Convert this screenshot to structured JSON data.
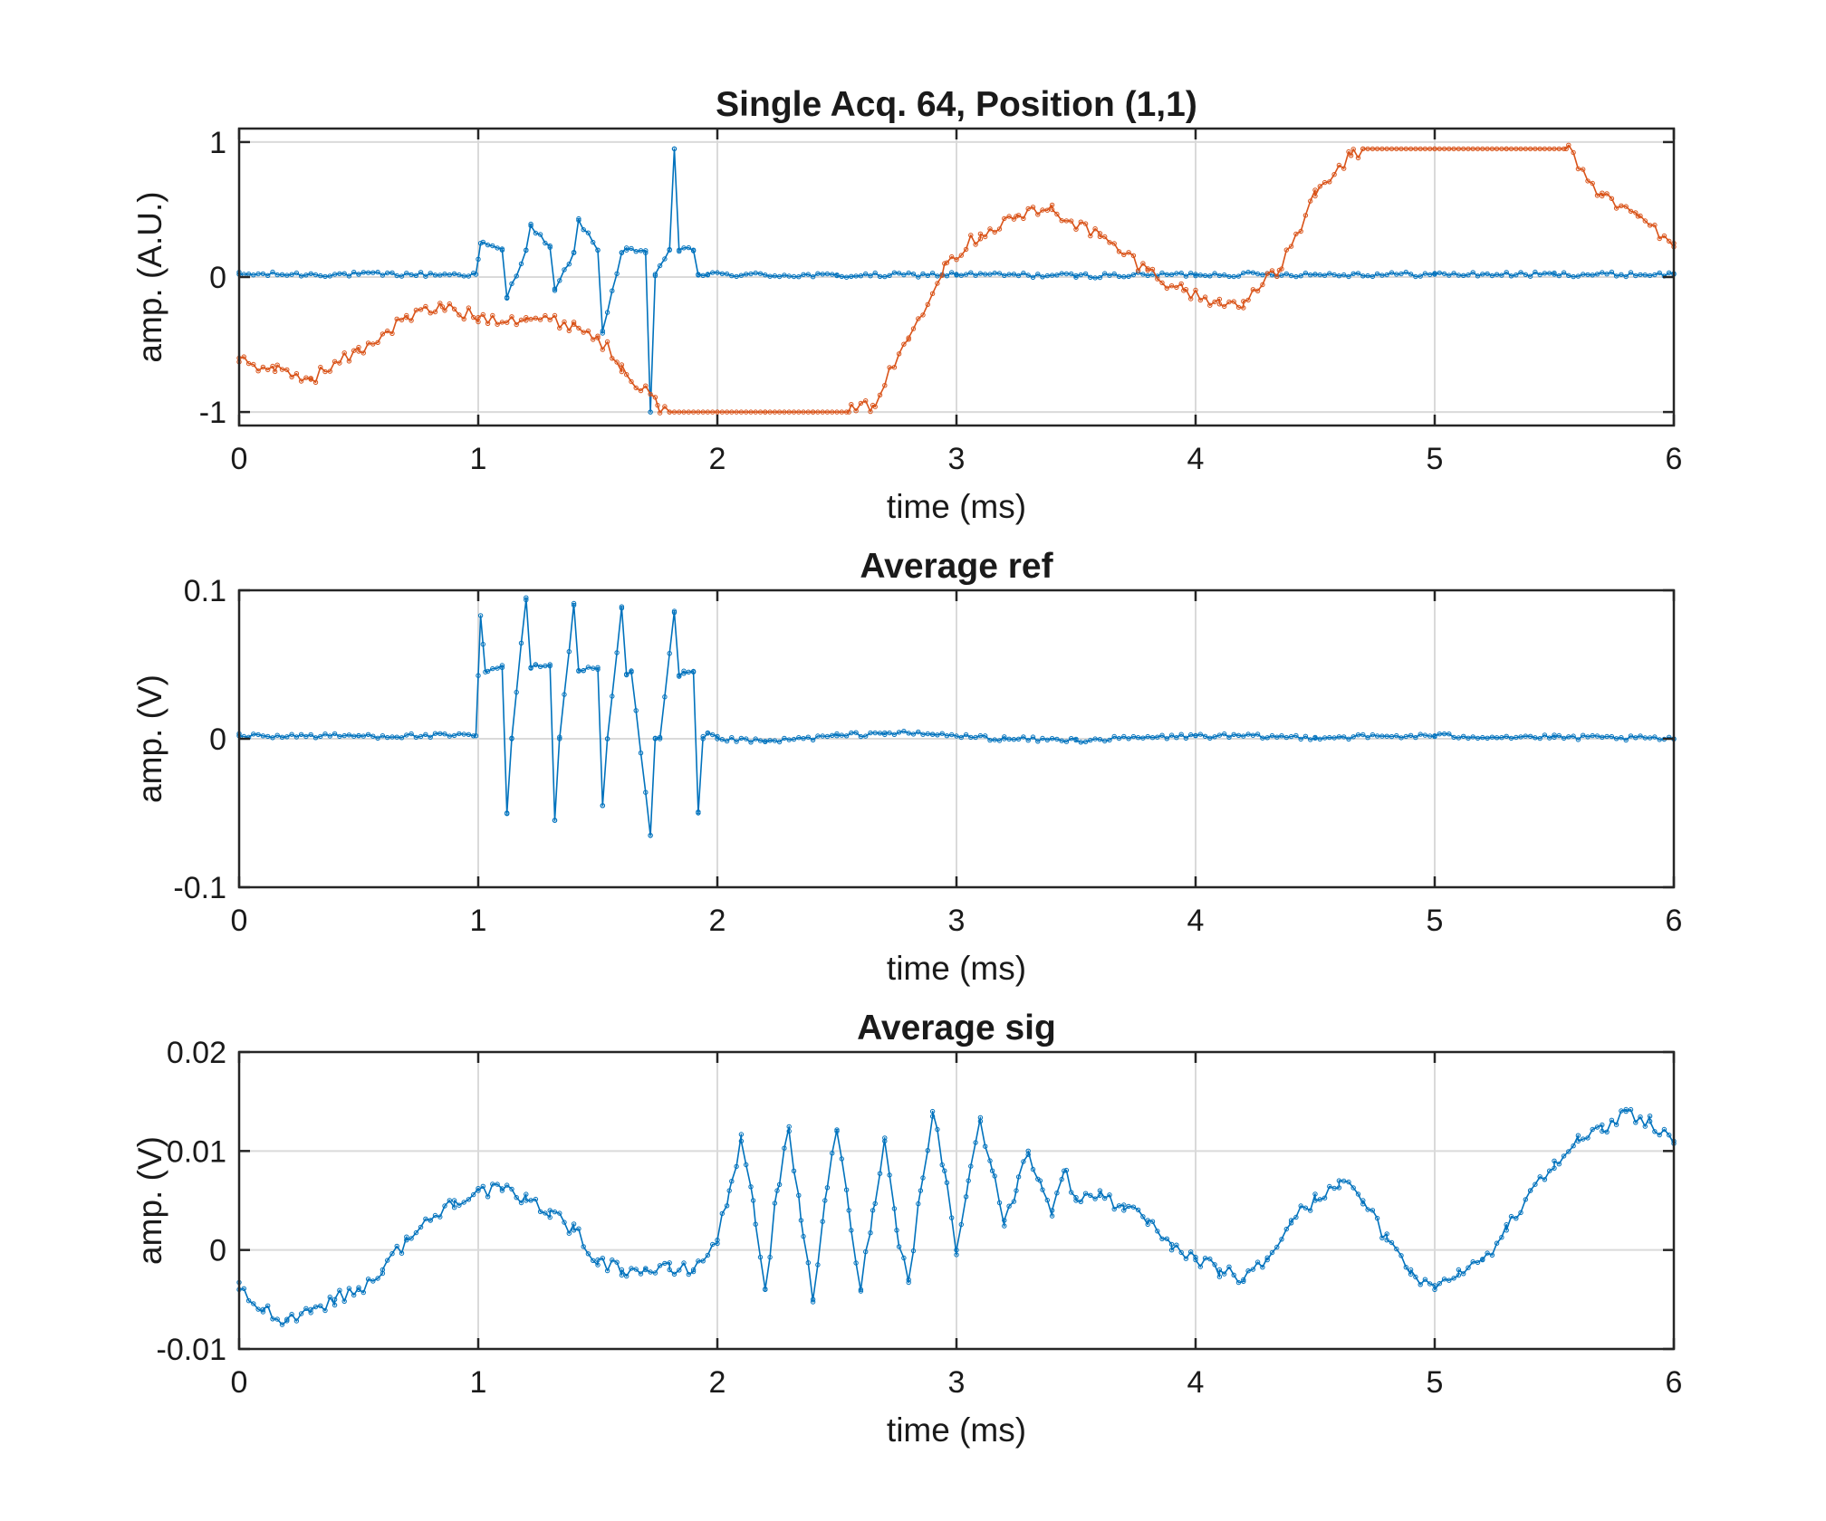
{
  "colors": {
    "blue": "#0072BD",
    "orange": "#D95319",
    "grid": "#DADADA",
    "axis": "#262626",
    "background": "#FFFFFF"
  },
  "chart_data": [
    {
      "type": "line",
      "title": "Single Acq. 64, Position (1,1)",
      "xlabel": "time (ms)",
      "ylabel": "amp. (A.U.)",
      "xlim": [
        0,
        6
      ],
      "ylim": [
        -1.1,
        1.1
      ],
      "xticks": [
        0,
        1,
        2,
        3,
        4,
        5,
        6
      ],
      "xtick_labels": [
        "0",
        "1",
        "2",
        "3",
        "4",
        "5",
        "6"
      ],
      "yticks": [
        -1,
        0,
        1
      ],
      "ytick_labels": [
        "-1",
        "0",
        "1"
      ],
      "grid": true,
      "markers": "small circles",
      "series": [
        {
          "color": "#0072BD",
          "x": [
            0,
            0.5,
            0.99,
            1.01,
            1.1,
            1.12,
            1.2,
            1.22,
            1.3,
            1.32,
            1.4,
            1.42,
            1.5,
            1.52,
            1.6,
            1.62,
            1.7,
            1.72,
            1.74,
            1.8,
            1.82,
            1.84,
            1.9,
            1.92,
            1.96,
            2.5,
            3,
            3.5,
            4,
            4.5,
            5,
            5.5,
            6
          ],
          "y": [
            0.02,
            0.02,
            0.02,
            0.25,
            0.2,
            -0.15,
            0.2,
            0.38,
            0.22,
            -0.1,
            0.18,
            0.42,
            0.2,
            -0.4,
            0.18,
            0.2,
            0.18,
            -1.0,
            0.02,
            0.2,
            0.95,
            0.2,
            0.2,
            0.02,
            0.02,
            0.01,
            0.02,
            0.01,
            0.02,
            0.02,
            0.02,
            0.02,
            0.02
          ]
        },
        {
          "color": "#D95319",
          "x": [
            0,
            0.15,
            0.3,
            0.5,
            0.7,
            0.85,
            1.0,
            1.2,
            1.4,
            1.5,
            1.6,
            1.75,
            1.8,
            2.0,
            2.2,
            2.4,
            2.55,
            2.65,
            2.8,
            2.95,
            3.1,
            3.25,
            3.4,
            3.6,
            3.8,
            3.95,
            4.1,
            4.2,
            4.35,
            4.5,
            4.65,
            4.7,
            5.0,
            5.3,
            5.55,
            5.7,
            5.85,
            6.0
          ],
          "y": [
            -0.6,
            -0.7,
            -0.75,
            -0.55,
            -0.3,
            -0.22,
            -0.3,
            -0.3,
            -0.35,
            -0.45,
            -0.65,
            -0.95,
            -1.0,
            -1.0,
            -1.0,
            -1.0,
            -1.0,
            -0.95,
            -0.45,
            0.1,
            0.32,
            0.45,
            0.5,
            0.3,
            0.05,
            -0.1,
            -0.2,
            -0.18,
            0.05,
            0.6,
            0.9,
            0.95,
            0.95,
            0.95,
            0.95,
            0.6,
            0.45,
            0.25
          ]
        }
      ]
    },
    {
      "type": "line",
      "title": "Average ref",
      "xlabel": "time (ms)",
      "ylabel": "amp. (V)",
      "xlim": [
        0,
        6
      ],
      "ylim": [
        -0.1,
        0.1
      ],
      "xticks": [
        0,
        1,
        2,
        3,
        4,
        5,
        6
      ],
      "xtick_labels": [
        "0",
        "1",
        "2",
        "3",
        "4",
        "5",
        "6"
      ],
      "yticks": [
        -0.1,
        0,
        0.1
      ],
      "ytick_labels": [
        "-0.1",
        "0",
        "0.1"
      ],
      "grid": true,
      "markers": "small circles",
      "series": [
        {
          "color": "#0072BD",
          "x": [
            0,
            0.5,
            0.99,
            1.01,
            1.03,
            1.1,
            1.12,
            1.14,
            1.2,
            1.22,
            1.24,
            1.3,
            1.32,
            1.34,
            1.4,
            1.42,
            1.44,
            1.5,
            1.52,
            1.54,
            1.6,
            1.62,
            1.64,
            1.72,
            1.74,
            1.76,
            1.82,
            1.84,
            1.86,
            1.9,
            1.92,
            1.94,
            1.96,
            2.0,
            2.2,
            2.5,
            2.7,
            2.9,
            3.2,
            3.5,
            4.0,
            4.5,
            5.0,
            5.5,
            6.0
          ],
          "y": [
            0.002,
            0.002,
            0.002,
            0.083,
            0.045,
            0.048,
            -0.05,
            0.0,
            0.095,
            0.048,
            0.05,
            0.05,
            -0.055,
            0.0,
            0.09,
            0.046,
            0.046,
            0.048,
            -0.045,
            0.0,
            0.088,
            0.043,
            0.045,
            -0.065,
            0.0,
            0.0,
            0.085,
            0.042,
            0.044,
            0.045,
            -0.05,
            0.0,
            0.004,
            0.0,
            -0.002,
            0.002,
            0.004,
            0.003,
            0.0,
            -0.001,
            0.002,
            0.001,
            0.002,
            0.001,
            0.0
          ]
        }
      ]
    },
    {
      "type": "line",
      "title": "Average sig",
      "xlabel": "time (ms)",
      "ylabel": "amp. (V)",
      "xlim": [
        0,
        6
      ],
      "ylim": [
        -0.01,
        0.02
      ],
      "xticks": [
        0,
        1,
        2,
        3,
        4,
        5,
        6
      ],
      "xtick_labels": [
        "0",
        "1",
        "2",
        "3",
        "4",
        "5",
        "6"
      ],
      "yticks": [
        -0.01,
        0,
        0.01,
        0.02
      ],
      "ytick_labels": [
        "-0.01",
        "0",
        "0.01",
        "0.02"
      ],
      "grid": true,
      "markers": "small circles",
      "series": [
        {
          "color": "#0072BD",
          "x": [
            0,
            0.1,
            0.2,
            0.3,
            0.4,
            0.5,
            0.6,
            0.7,
            0.8,
            0.9,
            1.0,
            1.1,
            1.2,
            1.3,
            1.4,
            1.5,
            1.6,
            1.7,
            1.8,
            1.9,
            2.0,
            2.05,
            2.1,
            2.15,
            2.2,
            2.25,
            2.3,
            2.35,
            2.4,
            2.45,
            2.5,
            2.55,
            2.6,
            2.65,
            2.7,
            2.75,
            2.8,
            2.85,
            2.9,
            2.95,
            3.0,
            3.05,
            3.1,
            3.15,
            3.2,
            3.25,
            3.3,
            3.35,
            3.4,
            3.45,
            3.5,
            3.6,
            3.7,
            3.8,
            3.9,
            4.0,
            4.1,
            4.2,
            4.3,
            4.4,
            4.5,
            4.6,
            4.7,
            4.8,
            4.9,
            5.0,
            5.1,
            5.2,
            5.3,
            5.4,
            5.5,
            5.6,
            5.7,
            5.8,
            5.9,
            6.0
          ],
          "y": [
            -0.004,
            -0.006,
            -0.007,
            -0.006,
            -0.005,
            -0.004,
            -0.002,
            0.001,
            0.003,
            0.005,
            0.006,
            0.006,
            0.005,
            0.004,
            0.002,
            -0.001,
            -0.002,
            -0.002,
            -0.002,
            -0.002,
            0.001,
            0.006,
            0.011,
            0.005,
            -0.004,
            0.006,
            0.012,
            0.003,
            -0.005,
            0.005,
            0.012,
            0.004,
            -0.004,
            0.004,
            0.011,
            0.002,
            -0.003,
            0.006,
            0.014,
            0.008,
            0.0,
            0.007,
            0.013,
            0.008,
            0.003,
            0.006,
            0.01,
            0.007,
            0.004,
            0.008,
            0.005,
            0.006,
            0.004,
            0.003,
            0.0,
            -0.001,
            -0.002,
            -0.003,
            -0.001,
            0.003,
            0.005,
            0.007,
            0.005,
            0.001,
            -0.002,
            -0.004,
            -0.002,
            -0.001,
            0.002,
            0.006,
            0.009,
            0.011,
            0.012,
            0.014,
            0.013,
            0.011
          ]
        }
      ]
    }
  ]
}
